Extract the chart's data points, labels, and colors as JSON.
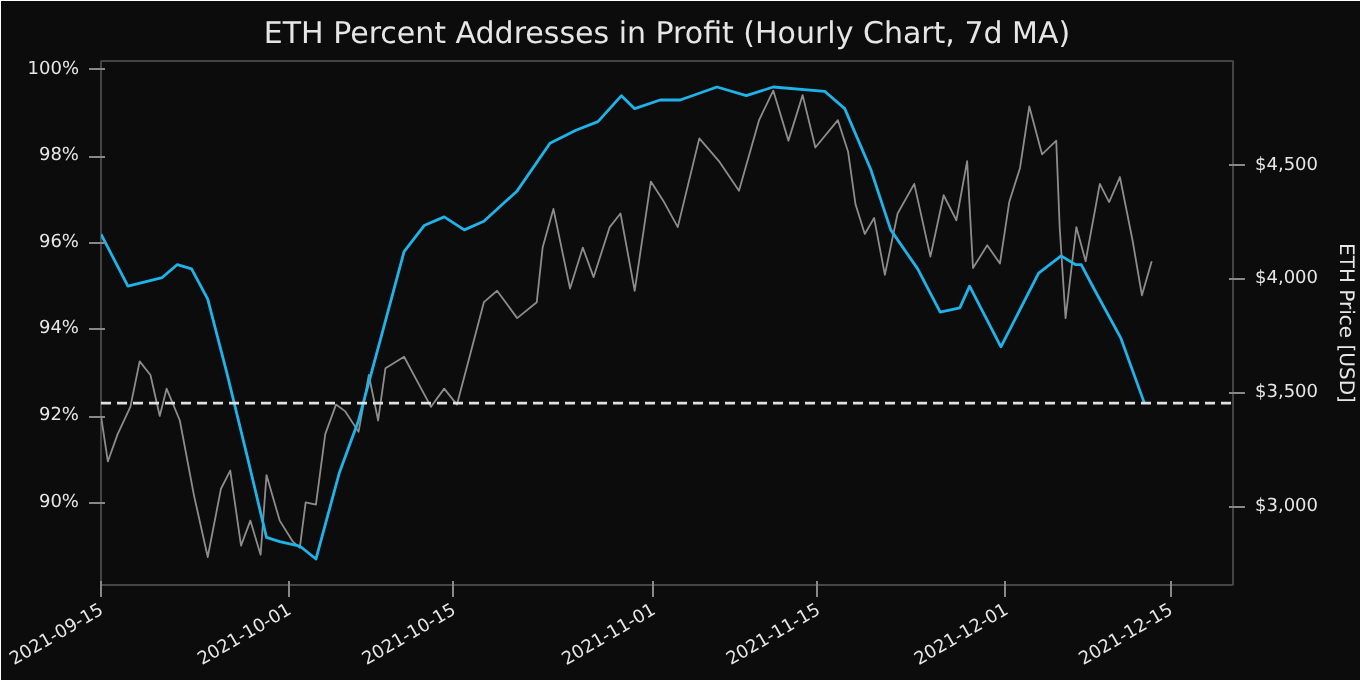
{
  "chart_data": {
    "type": "line",
    "title": "ETH Percent Addresses in Profit (Hourly Chart, 7d MA)",
    "y2label": "ETH Price [USD]",
    "xlim": [
      "2021-09-15",
      "2021-12-20T08:00"
    ],
    "xticks": [
      "2021-09-15",
      "2021-10-01",
      "2021-10-15",
      "2021-11-01",
      "2021-11-15",
      "2021-12-01",
      "2021-12-15"
    ],
    "ylim": [
      88.1,
      100.2
    ],
    "yticks": [
      {
        "value": 90,
        "label": "90%"
      },
      {
        "value": 92,
        "label": "92%"
      },
      {
        "value": 94,
        "label": "94%"
      },
      {
        "value": 96,
        "label": "96%"
      },
      {
        "value": 98,
        "label": "98%"
      },
      {
        "value": 100,
        "label": "100%"
      }
    ],
    "y2lim": [
      2657,
      4960
    ],
    "y2ticks": [
      {
        "value": 3000,
        "label": "$3,000"
      },
      {
        "value": 3500,
        "label": "$3,500"
      },
      {
        "value": 4000,
        "label": "$4,000"
      },
      {
        "value": 4500,
        "label": "$4,500"
      }
    ],
    "grid": false,
    "ref_lines": [
      {
        "axis": "y",
        "value": 92.3,
        "color": "#e0e0e0",
        "line_style": "dashed"
      }
    ],
    "series": [
      {
        "color": "#8c8c8c",
        "axis": "y2",
        "x": [
          "2021-09-15T00:00",
          "2021-09-15T14:00",
          "2021-09-16T10:00",
          "2021-09-17T12:00",
          "2021-09-18T07:00",
          "2021-09-19T05:00",
          "2021-09-20T00:00",
          "2021-09-20T14:00",
          "2021-09-21T17:00",
          "2021-09-22T22:00",
          "2021-09-24T02:00",
          "2021-09-25T05:00",
          "2021-09-26T00:00",
          "2021-09-26T22:00",
          "2021-09-27T17:00",
          "2021-09-28T14:00",
          "2021-09-29T02:00",
          "2021-09-30T05:00",
          "2021-10-01T07:00",
          "2021-10-01T22:00",
          "2021-10-02T10:00",
          "2021-10-03T07:00",
          "2021-10-04T02:00",
          "2021-10-05T00:00",
          "2021-10-05T19:00",
          "2021-10-06T22:00",
          "2021-10-07T19:00",
          "2021-10-08T14:00",
          "2021-10-09T05:00",
          "2021-10-10T19:00",
          "2021-10-13T02:00",
          "2021-10-14T05:00",
          "2021-10-15T07:00",
          "2021-10-16T10:00",
          "2021-10-17T14:00",
          "2021-10-18T17:00",
          "2021-10-20T10:00",
          "2021-10-22T02:00",
          "2021-10-22T14:00",
          "2021-10-23T12:00",
          "2021-10-24T22:00",
          "2021-10-26T00:00",
          "2021-10-26T22:00",
          "2021-10-28T07:00",
          "2021-10-29T05:00",
          "2021-10-30T10:00",
          "2021-10-31T19:00",
          "2021-11-01T22:00",
          "2021-11-03T02:00",
          "2021-11-04T22:00",
          "2021-11-06T14:00",
          "2021-11-08T07:00",
          "2021-11-10T00:00",
          "2021-11-11T05:00",
          "2021-11-12T12:00",
          "2021-11-13T17:00",
          "2021-11-14T19:00",
          "2021-11-16T17:00",
          "2021-11-17T14:00",
          "2021-11-18T05:00",
          "2021-11-19T00:00",
          "2021-11-19T19:00",
          "2021-11-20T17:00",
          "2021-11-21T19:00",
          "2021-11-23T05:00",
          "2021-11-24T14:00",
          "2021-11-25T17:00",
          "2021-11-26T19:00",
          "2021-11-27T17:00",
          "2021-11-28T05:00",
          "2021-11-29T10:00",
          "2021-11-30T12:00",
          "2021-12-01T07:00",
          "2021-12-02T05:00",
          "2021-12-03T00:00",
          "2021-12-04T02:00",
          "2021-12-05T07:00",
          "2021-12-05T14:00",
          "2021-12-06T02:00",
          "2021-12-07T00:00",
          "2021-12-07T19:00",
          "2021-12-09T00:00",
          "2021-12-09T19:00",
          "2021-12-10T17:00",
          "2021-12-11T19:00",
          "2021-12-12T14:00",
          "2021-12-13T10:00"
        ],
        "values": [
          3400,
          3200,
          3320,
          3440,
          3640,
          3580,
          3400,
          3520,
          3380,
          3050,
          2780,
          3080,
          3160,
          2830,
          2940,
          2790,
          3140,
          2940,
          2850,
          2820,
          3020,
          3010,
          3320,
          3450,
          3420,
          3330,
          3580,
          3380,
          3610,
          3660,
          3440,
          3520,
          3450,
          3670,
          3900,
          3950,
          3830,
          3900,
          4140,
          4310,
          3960,
          4140,
          4010,
          4230,
          4290,
          3950,
          4430,
          4340,
          4230,
          4620,
          4520,
          4390,
          4700,
          4830,
          4610,
          4810,
          4580,
          4700,
          4560,
          4330,
          4200,
          4270,
          4020,
          4290,
          4420,
          4100,
          4370,
          4260,
          4520,
          4050,
          4150,
          4070,
          4340,
          4490,
          4760,
          4550,
          4610,
          4230,
          3830,
          4230,
          4080,
          4420,
          4340,
          4450,
          4170,
          3930,
          4080
        ]
      },
      {
        "color": "#1eb4ea",
        "axis": "y",
        "x": [
          "2021-09-15T00:00",
          "2021-09-17T07:00",
          "2021-09-20T05:00",
          "2021-09-21T12:00",
          "2021-09-22T17:00",
          "2021-09-24T02:00",
          "2021-09-25T17:00",
          "2021-09-27T10:00",
          "2021-09-29T02:00",
          "2021-09-30T05:00",
          "2021-10-01T22:00",
          "2021-10-03T07:00",
          "2021-10-05T07:00",
          "2021-10-06T22:00",
          "2021-10-09T05:00",
          "2021-10-10T19:00",
          "2021-10-12T12:00",
          "2021-10-14T05:00",
          "2021-10-15T22:00",
          "2021-10-17T14:00",
          "2021-10-20T10:00",
          "2021-10-23T05:00",
          "2021-10-25T10:00",
          "2021-10-27T07:00",
          "2021-10-29T07:00",
          "2021-10-30T10:00",
          "2021-11-01T14:00",
          "2021-11-03T07:00",
          "2021-11-06T10:00",
          "2021-11-08T22:00",
          "2021-11-11T05:00",
          "2021-11-15T14:00",
          "2021-11-17T07:00",
          "2021-11-19T12:00",
          "2021-11-21T05:00",
          "2021-11-23T12:00",
          "2021-11-25T10:00",
          "2021-11-27T02:00",
          "2021-11-27T22:00",
          "2021-11-30T14:00",
          "2021-12-03T19:00",
          "2021-12-05T17:00",
          "2021-12-06T22:00",
          "2021-12-07T10:00",
          "2021-12-08T14:00",
          "2021-12-10T19:00",
          "2021-12-12T19:00"
        ],
        "values": [
          96.2,
          95.0,
          95.2,
          95.5,
          95.4,
          94.7,
          93.0,
          91.1,
          89.2,
          89.1,
          89.0,
          88.7,
          90.7,
          91.9,
          94.2,
          95.8,
          96.4,
          96.6,
          96.3,
          96.5,
          97.2,
          98.3,
          98.6,
          98.8,
          99.4,
          99.1,
          99.3,
          99.3,
          99.6,
          99.4,
          99.6,
          99.5,
          99.1,
          97.7,
          96.3,
          95.4,
          94.4,
          94.5,
          95.0,
          93.6,
          95.3,
          95.7,
          95.5,
          95.5,
          94.9,
          93.8,
          92.3
        ]
      }
    ]
  }
}
